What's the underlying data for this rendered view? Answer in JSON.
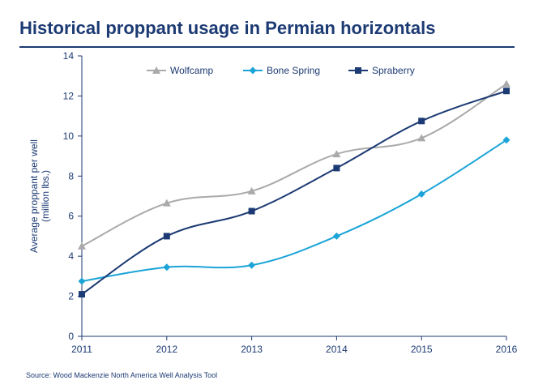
{
  "title": "Historical proppant usage in Permian horizontals",
  "source": "Source: Wood Mackenzie North America Well Analysis Tool",
  "chart_data": {
    "type": "line",
    "x": [
      2011,
      2012,
      2013,
      2014,
      2015,
      2016
    ],
    "series": [
      {
        "name": "Wolfcamp",
        "values": [
          4.5,
          6.65,
          7.25,
          9.1,
          9.9,
          12.6
        ],
        "color": "#aaaaaa",
        "marker": "triangle"
      },
      {
        "name": "Bone Spring",
        "values": [
          2.75,
          3.45,
          3.55,
          5.0,
          7.1,
          9.8
        ],
        "color": "#1ba4d8",
        "marker": "diamond"
      },
      {
        "name": "Spraberry",
        "values": [
          2.1,
          5.0,
          6.25,
          8.4,
          10.75,
          12.25
        ],
        "color": "#1c3a73",
        "marker": "square"
      }
    ],
    "ylabel_line1": "Average  proppant  per well",
    "ylabel_line2": "(million lbs.)",
    "ylim": [
      0,
      14
    ],
    "yticks": [
      0,
      2,
      4,
      6,
      8,
      10,
      12,
      14
    ],
    "xtick_labels": [
      "2011",
      "2012",
      "2013",
      "2014",
      "2015",
      "2016"
    ],
    "grid": false,
    "legend_position": "top"
  }
}
